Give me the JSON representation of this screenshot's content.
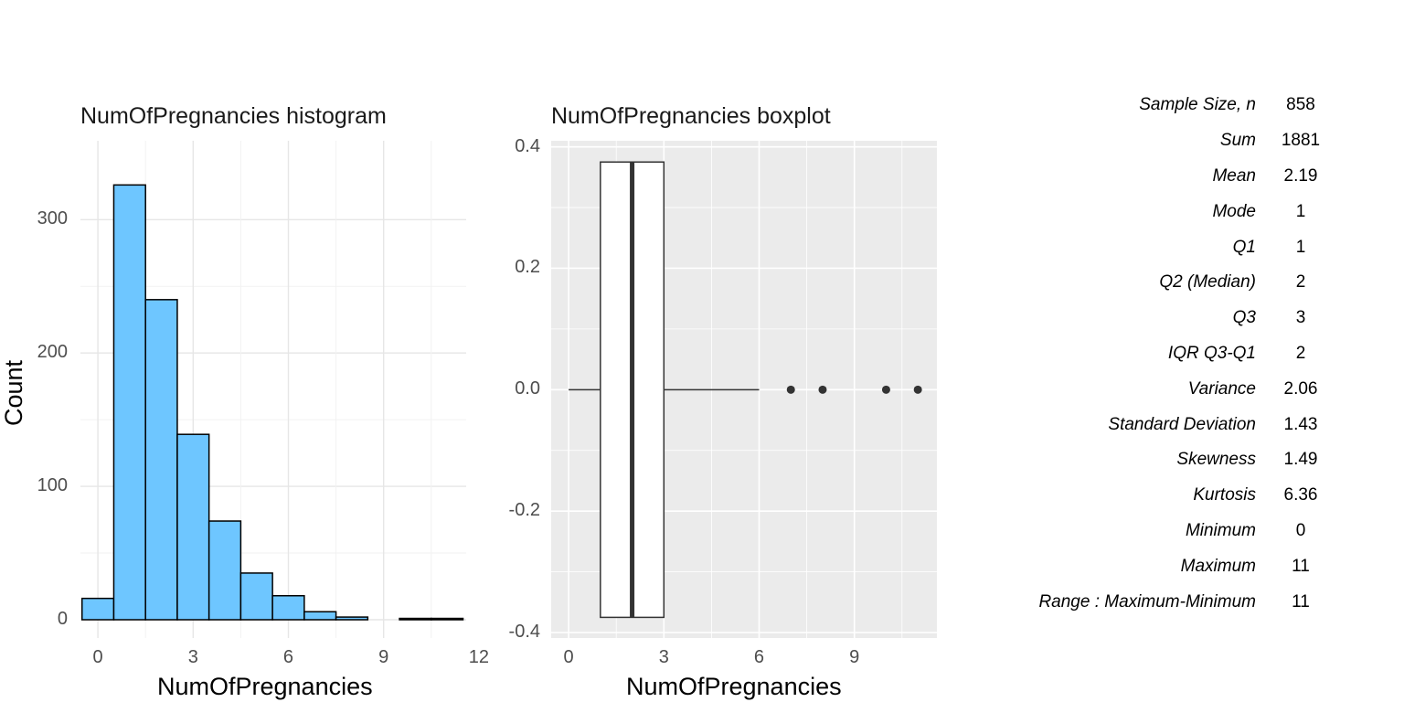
{
  "chart_data": [
    {
      "type": "bar",
      "title": "NumOfPregnancies histogram",
      "xlabel": "NumOfPregnancies",
      "ylabel": "Count",
      "bin_width": 1,
      "bin_centers": [
        0,
        1,
        2,
        3,
        4,
        5,
        6,
        7,
        8,
        9,
        10,
        11
      ],
      "values": [
        16,
        326,
        240,
        139,
        74,
        35,
        18,
        6,
        2,
        0,
        1,
        1
      ],
      "xlim": [
        -0.55,
        11.6
      ],
      "ylim": [
        0,
        342
      ],
      "xticks": [
        "0",
        "3",
        "6",
        "9",
        "12"
      ],
      "xtick_values": [
        0,
        3,
        6,
        9,
        12
      ],
      "yticks": [
        "0",
        "100",
        "200",
        "300"
      ],
      "ytick_values": [
        0,
        100,
        200,
        300
      ],
      "fill_color": "#6ec6ff",
      "grid": true
    },
    {
      "type": "boxplot",
      "title": "NumOfPregnancies boxplot",
      "xlabel": "NumOfPregnancies",
      "min_whisker": 0,
      "q1": 1,
      "median": 2,
      "q3": 3,
      "max_whisker": 6,
      "outliers": [
        7,
        8,
        10,
        11
      ],
      "box_half_height": 0.375,
      "xlim": [
        -0.55,
        11.6
      ],
      "ylim": [
        -0.4,
        0.41
      ],
      "xticks": [
        "0",
        "3",
        "6",
        "9"
      ],
      "xtick_values": [
        0,
        3,
        6,
        9
      ],
      "yticks": [
        "0.4",
        "0.2",
        "0.0",
        "-0.2",
        "-0.4"
      ],
      "ytick_values": [
        0.4,
        0.2,
        0,
        -0.2,
        -0.4
      ],
      "panel_color": "#ebebeb",
      "grid": true
    },
    {
      "type": "table",
      "rows": [
        {
          "label": "Sample Size, n",
          "value": "858"
        },
        {
          "label": "Sum",
          "value": "1881"
        },
        {
          "label": "Mean",
          "value": "2.19"
        },
        {
          "label": "Mode",
          "value": "1"
        },
        {
          "label": "Q1",
          "value": "1"
        },
        {
          "label": "Q2 (Median)",
          "value": "2"
        },
        {
          "label": "Q3",
          "value": "3"
        },
        {
          "label": "IQR Q3-Q1",
          "value": "2"
        },
        {
          "label": "Variance",
          "value": "2.06"
        },
        {
          "label": "Standard Deviation",
          "value": "1.43"
        },
        {
          "label": "Skewness",
          "value": "1.49"
        },
        {
          "label": "Kurtosis",
          "value": "6.36"
        },
        {
          "label": "Minimum",
          "value": "0"
        },
        {
          "label": "Maximum",
          "value": "11"
        },
        {
          "label": "Range : Maximum-Minimum",
          "value": "11"
        }
      ]
    }
  ]
}
